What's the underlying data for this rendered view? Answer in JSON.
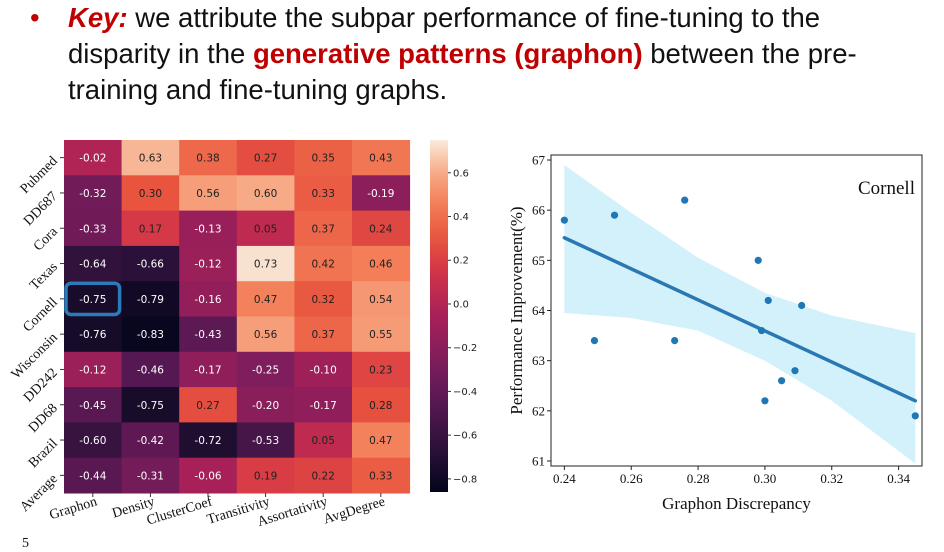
{
  "slide": {
    "bullet": "•",
    "key_label": "Key:",
    "text_before": " we attribute the subpar performance of fine-tuning to the disparity in the ",
    "highlight": "generative patterns (graphon)",
    "text_after": " between the pre-training and fine-tuning graphs.",
    "page_number": "5"
  },
  "colors": {
    "accent_red": "#c00000",
    "highlight_box": "#2b7bb9",
    "scatter_points": "#1f77b4",
    "confidence_band": "#d2f1fb"
  },
  "chart_data": [
    {
      "type": "heatmap",
      "rows": [
        "Pubmed",
        "DD687",
        "Cora",
        "Texas",
        "Cornell",
        "Wisconsin",
        "DD242",
        "DD68",
        "Brazil",
        "Average"
      ],
      "columns": [
        "Graphon",
        "Density",
        "ClusterCoef",
        "Transitivity",
        "Assortativity",
        "AvgDegree"
      ],
      "values": [
        [
          "-0.02",
          "0.63",
          "0.38",
          "0.27",
          "0.35",
          "0.43"
        ],
        [
          "-0.32",
          "0.30",
          "0.56",
          "0.60",
          "0.33",
          "-0.19"
        ],
        [
          "-0.33",
          "0.17",
          "-0.13",
          "0.05",
          "0.37",
          "0.24"
        ],
        [
          "-0.64",
          "-0.66",
          "-0.12",
          "0.73",
          "0.42",
          "0.46"
        ],
        [
          "-0.75",
          "-0.79",
          "-0.16",
          "0.47",
          "0.32",
          "0.54"
        ],
        [
          "-0.76",
          "-0.83",
          "-0.43",
          "0.56",
          "0.37",
          "0.55"
        ],
        [
          "-0.12",
          "-0.46",
          "-0.17",
          "-0.25",
          "-0.10",
          "0.23"
        ],
        [
          "-0.45",
          "-0.75",
          "0.27",
          "-0.20",
          "-0.17",
          "0.28"
        ],
        [
          "-0.60",
          "-0.42",
          "-0.72",
          "-0.53",
          "0.05",
          "0.47"
        ],
        [
          "-0.44",
          "-0.31",
          "-0.06",
          "0.19",
          "0.22",
          "0.33"
        ]
      ],
      "highlighted_cell": {
        "row": 4,
        "col": 0
      },
      "colorbar": {
        "min": -0.86,
        "max": 0.75,
        "ticks": [
          "0.6",
          "0.4",
          "0.2",
          "0.0",
          "−0.2",
          "−0.4",
          "−0.6",
          "−0.8"
        ],
        "tick_values": [
          0.6,
          0.4,
          0.2,
          0.0,
          -0.2,
          -0.4,
          -0.6,
          -0.8
        ]
      }
    },
    {
      "type": "scatter",
      "title": "Cornell",
      "xlabel": "Graphon Discrepancy",
      "ylabel": "Performance Improvement(%)",
      "xlim": [
        0.236,
        0.347
      ],
      "ylim": [
        60.9,
        67.1
      ],
      "x_ticks": [
        "0.24",
        "0.26",
        "0.28",
        "0.30",
        "0.32",
        "0.34"
      ],
      "x_tick_values": [
        0.24,
        0.26,
        0.28,
        0.3,
        0.32,
        0.34
      ],
      "y_ticks": [
        "61",
        "62",
        "63",
        "64",
        "65",
        "66",
        "67"
      ],
      "y_tick_values": [
        61,
        62,
        63,
        64,
        65,
        66,
        67
      ],
      "points": [
        {
          "x": 0.24,
          "y": 65.8
        },
        {
          "x": 0.249,
          "y": 63.4
        },
        {
          "x": 0.255,
          "y": 65.9
        },
        {
          "x": 0.273,
          "y": 63.4
        },
        {
          "x": 0.276,
          "y": 66.2
        },
        {
          "x": 0.298,
          "y": 65.0
        },
        {
          "x": 0.299,
          "y": 63.6
        },
        {
          "x": 0.301,
          "y": 64.2
        },
        {
          "x": 0.3,
          "y": 62.2
        },
        {
          "x": 0.305,
          "y": 62.6
        },
        {
          "x": 0.309,
          "y": 62.8
        },
        {
          "x": 0.311,
          "y": 64.1
        },
        {
          "x": 0.345,
          "y": 61.9
        }
      ],
      "regression": {
        "x": [
          0.24,
          0.345
        ],
        "y": [
          65.45,
          62.2
        ]
      },
      "confidence_band": {
        "x": [
          0.24,
          0.26,
          0.28,
          0.3,
          0.32,
          0.345
        ],
        "upper": [
          66.9,
          65.95,
          65.05,
          64.35,
          63.9,
          63.55
        ],
        "lower": [
          63.95,
          63.85,
          63.6,
          63.0,
          62.2,
          60.95
        ]
      }
    }
  ]
}
